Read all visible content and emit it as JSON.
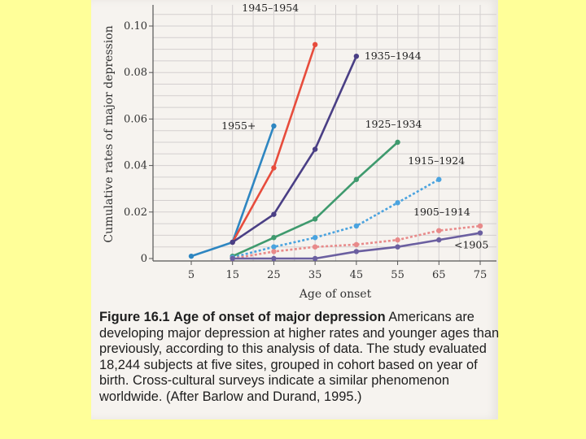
{
  "chart_data": {
    "type": "line",
    "title": "",
    "xlabel": "Age of onset",
    "ylabel": "Cumulative rates of major depression",
    "x_ticks": [
      "5",
      "15",
      "25",
      "35",
      "45",
      "55",
      "65",
      "75"
    ],
    "y_ticks": [
      "0",
      "0.02",
      "0.04",
      "0.06",
      "0.08",
      "0.10"
    ],
    "xlim": [
      5,
      75
    ],
    "ylim": [
      0,
      0.1
    ],
    "grid": true,
    "series": [
      {
        "name": "1955+",
        "color": "#2e86c1",
        "style": "solid",
        "x": [
          5,
          15,
          25
        ],
        "y": [
          0.001,
          0.007,
          0.057
        ]
      },
      {
        "name": "1945–1954",
        "color": "#e74c3c",
        "style": "solid",
        "x": [
          15,
          25,
          35
        ],
        "y": [
          0.007,
          0.039,
          0.092
        ]
      },
      {
        "name": "1935–1944",
        "color": "#4a3f85",
        "style": "solid",
        "x": [
          15,
          25,
          35,
          45
        ],
        "y": [
          0.007,
          0.019,
          0.047,
          0.087
        ]
      },
      {
        "name": "1925–1934",
        "color": "#3f9a6e",
        "style": "solid",
        "x": [
          15,
          25,
          35,
          45,
          55
        ],
        "y": [
          0.001,
          0.009,
          0.017,
          0.034,
          0.05
        ]
      },
      {
        "name": "1915–1924",
        "color": "#4aa3df",
        "style": "dotted",
        "x": [
          15,
          25,
          35,
          45,
          55,
          65
        ],
        "y": [
          0.0005,
          0.005,
          0.009,
          0.014,
          0.024,
          0.034
        ]
      },
      {
        "name": "1905–1914",
        "color": "#e88a8a",
        "style": "dotted",
        "x": [
          15,
          25,
          35,
          45,
          55,
          65,
          75
        ],
        "y": [
          0.0,
          0.003,
          0.005,
          0.006,
          0.008,
          0.012,
          0.014
        ]
      },
      {
        "name": "<1905",
        "color": "#6b5fa0",
        "style": "solid",
        "x": [
          15,
          25,
          35,
          45,
          55,
          65,
          75
        ],
        "y": [
          0.0,
          0.0,
          0.0,
          0.003,
          0.005,
          0.008,
          0.011
        ]
      }
    ]
  },
  "caption": {
    "figure_number": "Figure 16.1",
    "figure_title": "Age of onset of major depression",
    "text": "Americans are developing major depression at higher rates and younger ages than previously, according to this analysis of data. The study evaluated 18,244 subjects at five sites, grouped in cohort based on year of birth. Cross-cultural surveys indicate a similar phenomenon worldwide. (After Barlow and Durand, 1995.)"
  }
}
